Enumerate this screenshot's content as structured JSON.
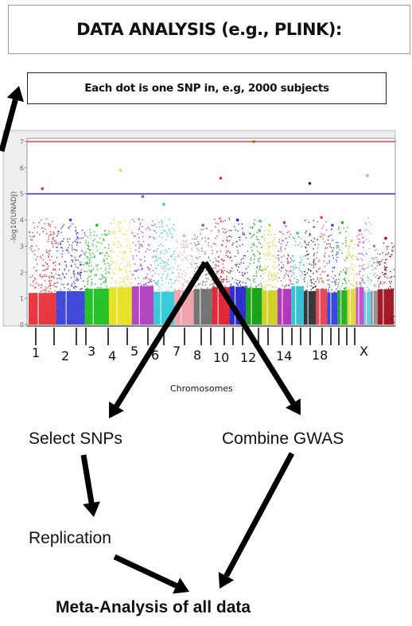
{
  "title": "DATA ANALYSIS (e.g., PLINK):",
  "note": "Each dot is one SNP in, e.g, 2000 subjects",
  "chart_data": {
    "type": "scatter",
    "ylabel": "-log10(UNADJ)",
    "xlabel": "Chromosomes",
    "ylim": [
      0,
      7
    ],
    "yticks": [
      "0",
      "1",
      "2",
      "3",
      "4",
      "5",
      "6",
      "7"
    ],
    "x_tick_labels": [
      "1",
      "2",
      "3",
      "4",
      "5",
      "6",
      "7",
      "8",
      "10",
      "12",
      "14",
      "18",
      "X"
    ],
    "threshold_lines": [
      {
        "y": 7,
        "color": "#e8404a"
      },
      {
        "y": 5,
        "color": "#3a3ae0"
      }
    ],
    "chromosomes": [
      {
        "chr": "1",
        "color": "#e8303a",
        "peak": 5.2
      },
      {
        "chr": "2",
        "color": "#3a40d8",
        "peak": 4.0
      },
      {
        "chr": "3",
        "color": "#1ec020",
        "peak": 3.8
      },
      {
        "chr": "4",
        "color": "#e8e020",
        "peak": 5.9
      },
      {
        "chr": "5",
        "color": "#b040c0",
        "peak": 4.9
      },
      {
        "chr": "6",
        "color": "#30c8d8",
        "peak": 4.6
      },
      {
        "chr": "7",
        "color": "#f0a0a8",
        "peak": 3.4
      },
      {
        "chr": "8",
        "color": "#707070",
        "peak": 3.8
      },
      {
        "chr": "9",
        "color": "#e02030",
        "peak": 5.6
      },
      {
        "chr": "10",
        "color": "#2828d0",
        "peak": 4.0
      },
      {
        "chr": "11",
        "color": "#10a010",
        "peak": 7.0
      },
      {
        "chr": "12",
        "color": "#d0d020",
        "peak": 3.8
      },
      {
        "chr": "13",
        "color": "#b030b8",
        "peak": 3.9
      },
      {
        "chr": "14",
        "color": "#30c0d0",
        "peak": 3.5
      },
      {
        "chr": "15",
        "color": "#303030",
        "peak": 5.4
      },
      {
        "chr": "16",
        "color": "#e84050",
        "peak": 4.1
      },
      {
        "chr": "17",
        "color": "#3040e0",
        "peak": 3.8
      },
      {
        "chr": "18",
        "color": "#20b020",
        "peak": 3.9
      },
      {
        "chr": "19",
        "color": "#e0d830",
        "peak": 3.2
      },
      {
        "chr": "20",
        "color": "#c050c8",
        "peak": 3.6
      },
      {
        "chr": "21",
        "color": "#60d0e0",
        "peak": 5.7
      },
      {
        "chr": "22",
        "color": "#909090",
        "peak": 3.0
      },
      {
        "chr": "X",
        "color": "#a01020",
        "peak": 3.3
      }
    ]
  },
  "flow": {
    "select": "Select SNPs",
    "combine": "Combine GWAS",
    "replication": "Replication",
    "meta": "Meta-Analysis of all data"
  }
}
